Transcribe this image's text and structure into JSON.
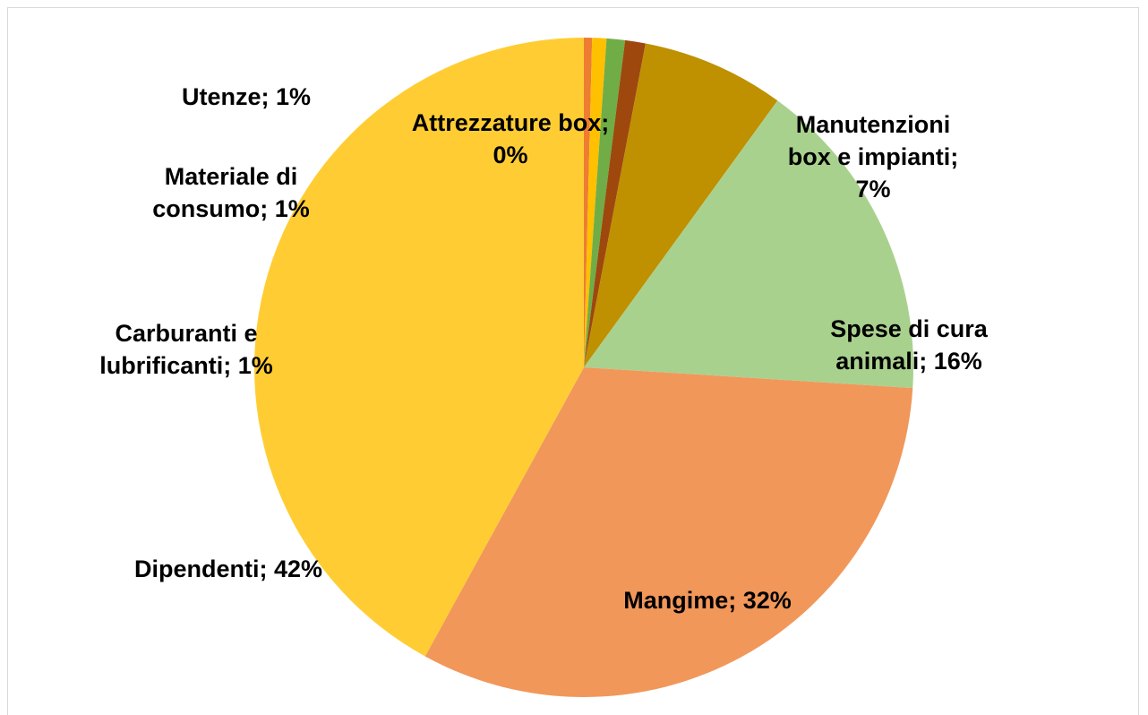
{
  "chart_data": {
    "type": "pie",
    "categories": [
      "Attrezzature box",
      "Utenze",
      "Materiale di consumo",
      "Carburanti e lubrificanti",
      "Manutenzioni box e impianti",
      "Spese di cura animali",
      "Mangime",
      "Dipendenti"
    ],
    "values": [
      0.4,
      0.7,
      0.9,
      1.0,
      7,
      16,
      32,
      42
    ],
    "value_labels": [
      "0%",
      "1%",
      "1%",
      "1%",
      "7%",
      "16%",
      "32%",
      "42%"
    ],
    "label_separator": "; ",
    "colors": [
      "#ed7d31",
      "#ffc000",
      "#70ad47",
      "#9e480e",
      "#bf9000",
      "#a9d18e",
      "#f1975a",
      "#ffcd33"
    ]
  }
}
